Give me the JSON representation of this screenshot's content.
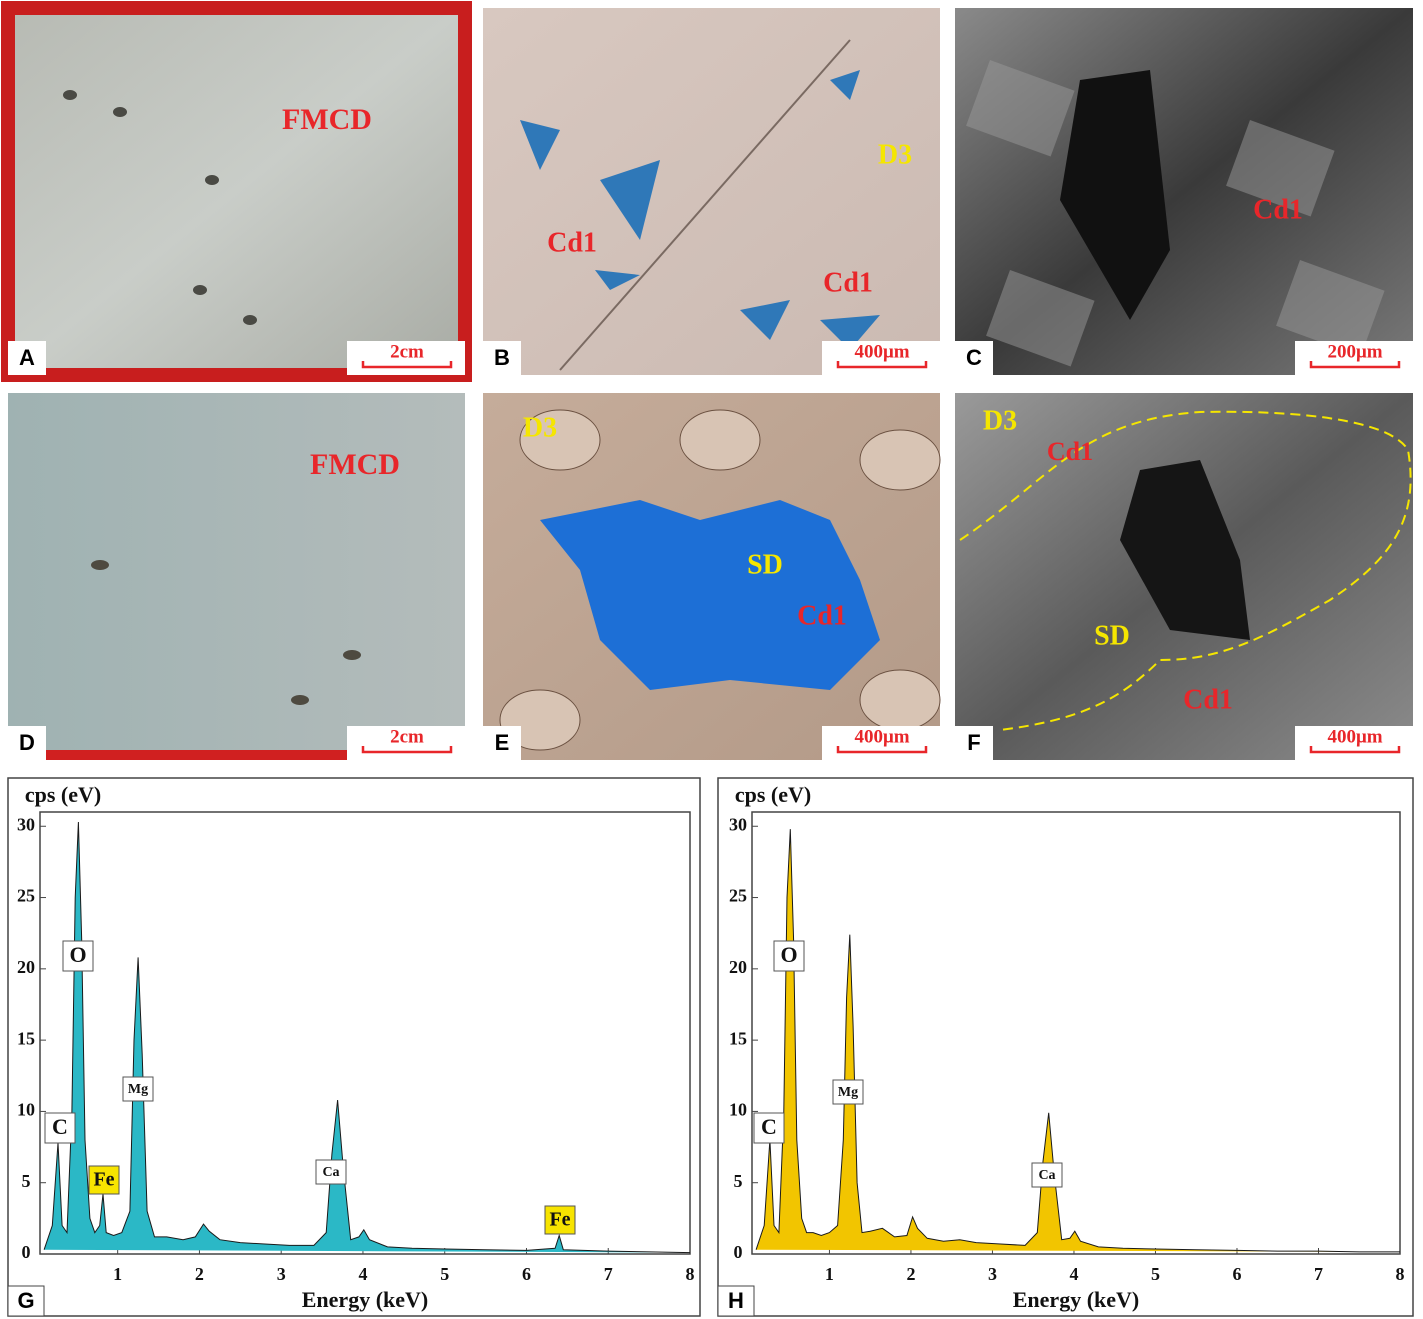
{
  "panels": [
    {
      "letter": "A",
      "labels": [
        "FMCD"
      ],
      "scale": "2cm"
    },
    {
      "letter": "B",
      "labels": [
        "D3",
        "Cd1",
        "Cd1"
      ],
      "scale": "400μm"
    },
    {
      "letter": "C",
      "labels": [
        "Cd1"
      ],
      "scale": "200μm"
    },
    {
      "letter": "D",
      "labels": [
        "FMCD"
      ],
      "scale": "2cm"
    },
    {
      "letter": "E",
      "labels": [
        "D3",
        "SD",
        "Cd1"
      ],
      "scale": "400μm"
    },
    {
      "letter": "F",
      "labels": [
        "D3",
        "Cd1",
        "SD",
        "Cd1"
      ],
      "scale": "400μm"
    }
  ],
  "chart_data": [
    {
      "type": "area",
      "panel": "G",
      "ylabel": "cps (eV)",
      "xlabel": "Energy (keV)",
      "color": "#2bb8c6",
      "xlim": [
        0.05,
        8
      ],
      "ylim": [
        0,
        31
      ],
      "xticks": [
        1,
        2,
        3,
        4,
        5,
        6,
        7,
        8
      ],
      "yticks": [
        0,
        5,
        10,
        15,
        20,
        25,
        30
      ],
      "annotations": [
        "C",
        "Fe",
        "O",
        "Mg",
        "Ca",
        "Fe"
      ],
      "x": [
        0.1,
        0.2,
        0.27,
        0.32,
        0.38,
        0.44,
        0.48,
        0.52,
        0.56,
        0.6,
        0.66,
        0.72,
        0.78,
        0.82,
        0.86,
        0.95,
        1.05,
        1.15,
        1.2,
        1.25,
        1.3,
        1.36,
        1.45,
        1.6,
        1.8,
        1.95,
        2.05,
        2.12,
        2.25,
        2.5,
        2.8,
        3.1,
        3.4,
        3.55,
        3.62,
        3.69,
        3.76,
        3.85,
        3.95,
        4.01,
        4.08,
        4.3,
        4.6,
        5.0,
        5.5,
        6.0,
        6.35,
        6.4,
        6.45,
        7.0,
        7.5,
        8.0
      ],
      "values": [
        0.3,
        2,
        7.8,
        2,
        1.5,
        10,
        25,
        30.3,
        22,
        8,
        2.5,
        1.5,
        2,
        4.2,
        1.5,
        1.3,
        1.5,
        3,
        15,
        20.8,
        14,
        3,
        1.2,
        1.2,
        1.0,
        1.2,
        2.1,
        1.6,
        1.0,
        0.8,
        0.7,
        0.6,
        0.6,
        1.5,
        7,
        10.8,
        6,
        1,
        1.2,
        1.7,
        1.0,
        0.5,
        0.4,
        0.35,
        0.3,
        0.25,
        0.4,
        1.3,
        0.3,
        0.2,
        0.15,
        0.1
      ]
    },
    {
      "type": "area",
      "panel": "H",
      "ylabel": "cps (eV)",
      "xlabel": "Energy (keV)",
      "color": "#f2c500",
      "xlim": [
        0.05,
        8
      ],
      "ylim": [
        0,
        31
      ],
      "xticks": [
        1,
        2,
        3,
        4,
        5,
        6,
        7,
        8
      ],
      "yticks": [
        0,
        5,
        10,
        15,
        20,
        25,
        30
      ],
      "annotations": [
        "C",
        "O",
        "Mg",
        "Ca"
      ],
      "x": [
        0.1,
        0.2,
        0.27,
        0.32,
        0.38,
        0.44,
        0.48,
        0.52,
        0.56,
        0.6,
        0.66,
        0.72,
        0.8,
        0.9,
        1.0,
        1.1,
        1.17,
        1.21,
        1.25,
        1.29,
        1.34,
        1.4,
        1.5,
        1.65,
        1.8,
        1.95,
        2.02,
        2.08,
        2.2,
        2.4,
        2.6,
        2.8,
        3.1,
        3.4,
        3.55,
        3.62,
        3.69,
        3.76,
        3.85,
        3.95,
        4.01,
        4.08,
        4.3,
        4.6,
        5.0,
        5.5,
        6.0,
        6.5,
        7.0,
        7.5,
        8.0
      ],
      "values": [
        0.3,
        2,
        8.0,
        2,
        1.5,
        10,
        25,
        29.8,
        22,
        8,
        2.5,
        1.5,
        1.5,
        1.3,
        1.5,
        2,
        8,
        18,
        22.4,
        16,
        5,
        1.5,
        1.6,
        1.8,
        1.2,
        1.3,
        2.6,
        1.8,
        1.1,
        0.9,
        1.0,
        0.8,
        0.7,
        0.6,
        1.5,
        6.5,
        9.9,
        5.5,
        1,
        1.1,
        1.6,
        0.9,
        0.5,
        0.4,
        0.35,
        0.3,
        0.25,
        0.2,
        0.2,
        0.15,
        0.15
      ]
    }
  ]
}
